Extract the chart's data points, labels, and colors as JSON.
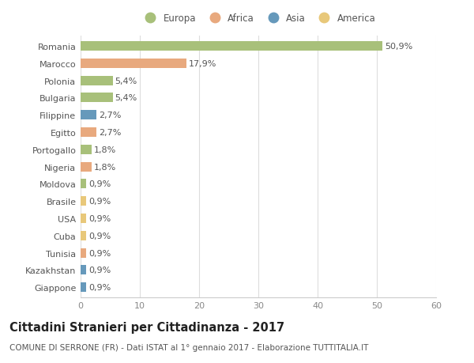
{
  "categories": [
    "Romania",
    "Marocco",
    "Polonia",
    "Bulgaria",
    "Filippine",
    "Egitto",
    "Portogallo",
    "Nigeria",
    "Moldova",
    "Brasile",
    "USA",
    "Cuba",
    "Tunisia",
    "Kazakhstan",
    "Giappone"
  ],
  "values": [
    50.9,
    17.9,
    5.4,
    5.4,
    2.7,
    2.7,
    1.8,
    1.8,
    0.9,
    0.9,
    0.9,
    0.9,
    0.9,
    0.9,
    0.9
  ],
  "labels": [
    "50,9%",
    "17,9%",
    "5,4%",
    "5,4%",
    "2,7%",
    "2,7%",
    "1,8%",
    "1,8%",
    "0,9%",
    "0,9%",
    "0,9%",
    "0,9%",
    "0,9%",
    "0,9%",
    "0,9%"
  ],
  "continents": [
    "Europa",
    "Africa",
    "Europa",
    "Europa",
    "Asia",
    "Africa",
    "Europa",
    "Africa",
    "Europa",
    "America",
    "America",
    "America",
    "Africa",
    "Asia",
    "Asia"
  ],
  "continent_colors": {
    "Europa": "#a8c07a",
    "Africa": "#e8a97e",
    "Asia": "#6699bb",
    "America": "#e8c87a"
  },
  "legend_order": [
    "Europa",
    "Africa",
    "Asia",
    "America"
  ],
  "xlim": [
    0,
    60
  ],
  "xticks": [
    0,
    10,
    20,
    30,
    40,
    50,
    60
  ],
  "title": "Cittadini Stranieri per Cittadinanza - 2017",
  "subtitle": "COMUNE DI SERRONE (FR) - Dati ISTAT al 1° gennaio 2017 - Elaborazione TUTTITALIA.IT",
  "background_color": "#ffffff",
  "grid_color": "#dddddd",
  "bar_height": 0.55,
  "label_fontsize": 8,
  "title_fontsize": 10.5,
  "subtitle_fontsize": 7.5,
  "tick_fontsize": 8
}
